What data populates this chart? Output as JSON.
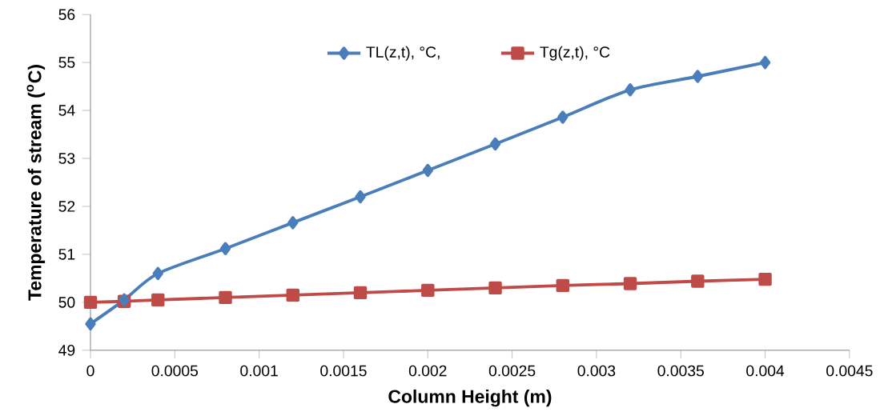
{
  "chart_data": {
    "type": "line",
    "xlabel": "Column Height (m)",
    "ylabel": "Temperature of stream ($^{o}$C)",
    "x": [
      0,
      0.0002,
      0.0004,
      0.0008,
      0.0012,
      0.0016,
      0.002,
      0.0024,
      0.0028,
      0.0032,
      0.0036,
      0.004
    ],
    "series": [
      {
        "name": "TL(z,t),  °C,",
        "color": "#4a7ebb",
        "marker": "diamond",
        "values": [
          49.55,
          50.05,
          50.6,
          51.12,
          51.66,
          52.2,
          52.75,
          53.3,
          53.86,
          54.43,
          54.71,
          55.0
        ]
      },
      {
        "name": "Tg(z,t),  °C",
        "color": "#be4b48",
        "marker": "square",
        "values": [
          50.0,
          50.02,
          50.05,
          50.1,
          50.15,
          50.2,
          50.25,
          50.3,
          50.35,
          50.39,
          50.44,
          50.48
        ]
      }
    ],
    "xlim": [
      0,
      0.0045
    ],
    "xticks": [
      0,
      0.0005,
      0.001,
      0.0015,
      0.002,
      0.0025,
      0.003,
      0.0035,
      0.004,
      0.0045
    ],
    "ylim": [
      49,
      56
    ],
    "yticks": [
      49,
      50,
      51,
      52,
      53,
      54,
      55,
      56
    ],
    "grid": false,
    "legend": "top",
    "line_style": "solid"
  }
}
